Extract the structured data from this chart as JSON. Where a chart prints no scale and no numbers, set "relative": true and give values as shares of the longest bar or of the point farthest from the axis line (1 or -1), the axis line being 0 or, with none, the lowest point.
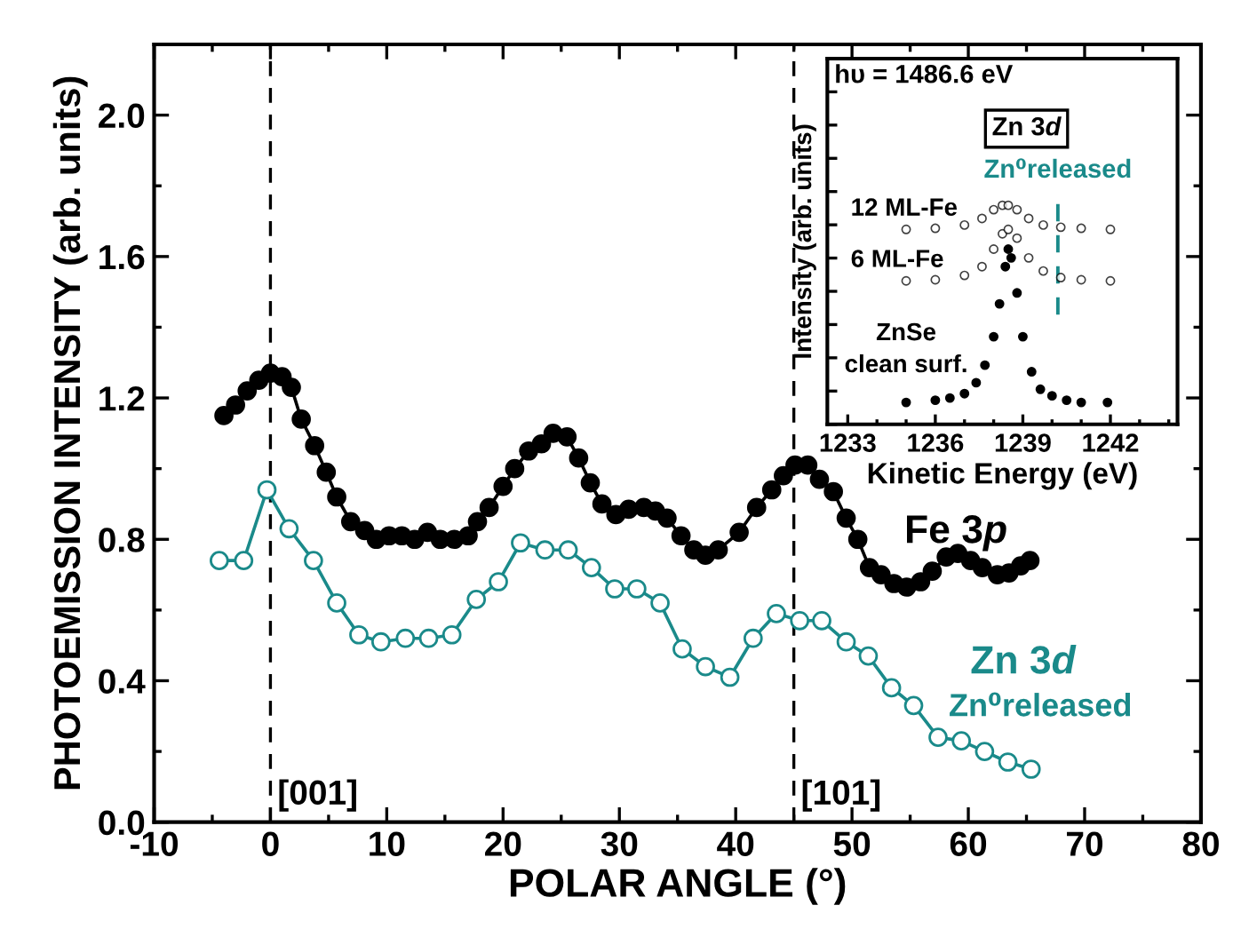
{
  "chart_data": [
    {
      "type": "line",
      "xlabel": "POLAR ANGLE (°)",
      "ylabel": "PHOTOEMISSION INTENSITY (arb. units)",
      "xlim": [
        -10,
        80
      ],
      "ylim": [
        0,
        2.2
      ],
      "xticks": [
        -10,
        0,
        10,
        20,
        30,
        40,
        50,
        60,
        70,
        80
      ],
      "yticks": [
        {
          "value": 0,
          "label": "0.0"
        },
        {
          "value": 0.4,
          "label": "0.4"
        },
        {
          "value": 0.8,
          "label": "0.8"
        },
        {
          "value": 1.2,
          "label": "1.2"
        },
        {
          "value": 1.6,
          "label": "1.6"
        },
        {
          "value": 2.0,
          "label": "2.0"
        }
      ],
      "marker": "circle",
      "grid": false,
      "series": [
        {
          "name": "Fe 3p",
          "color": "#000000",
          "x": [
            -4.0,
            -3.0,
            -2.0,
            -1.0,
            0.0,
            1.0,
            1.8,
            2.65,
            3.8,
            4.8,
            5.7,
            6.9,
            8.1,
            9.1,
            10.2,
            11.3,
            12.4,
            13.5,
            14.6,
            15.8,
            17.0,
            17.8,
            18.8,
            20.0,
            21.0,
            22.2,
            23.3,
            24.3,
            25.5,
            26.5,
            27.5,
            28.5,
            29.7,
            30.8,
            32.1,
            33.1,
            34.1,
            35.3,
            36.4,
            37.4,
            38.5,
            40.3,
            41.8,
            43.1,
            44.1,
            45.1,
            46.2,
            47.2,
            48.4,
            49.5,
            50.5,
            51.5,
            52.5,
            53.6,
            54.7,
            55.9,
            56.9,
            58.1,
            59.1,
            60.2,
            61.2,
            62.5,
            63.5,
            64.5,
            65.3
          ],
          "values": [
            1.15,
            1.18,
            1.22,
            1.25,
            1.27,
            1.26,
            1.23,
            1.14,
            1.065,
            0.99,
            0.92,
            0.85,
            0.825,
            0.8,
            0.81,
            0.81,
            0.8,
            0.82,
            0.8,
            0.8,
            0.81,
            0.85,
            0.89,
            0.95,
            1.0,
            1.05,
            1.07,
            1.1,
            1.09,
            1.03,
            0.96,
            0.9,
            0.87,
            0.885,
            0.89,
            0.88,
            0.86,
            0.81,
            0.77,
            0.755,
            0.77,
            0.82,
            0.89,
            0.94,
            0.98,
            1.01,
            1.01,
            0.97,
            0.935,
            0.86,
            0.8,
            0.72,
            0.7,
            0.675,
            0.665,
            0.68,
            0.71,
            0.75,
            0.76,
            0.74,
            0.72,
            0.7,
            0.705,
            0.725,
            0.74
          ]
        },
        {
          "name": "Zn 3d",
          "color": "#1a8a8a",
          "x": [
            -4.4,
            -2.3,
            -0.3,
            1.6,
            3.7,
            5.7,
            7.6,
            9.5,
            11.6,
            13.6,
            15.6,
            17.7,
            19.6,
            21.5,
            23.6,
            25.6,
            27.6,
            29.6,
            31.5,
            33.5,
            35.4,
            37.4,
            39.5,
            41.5,
            43.5,
            45.5,
            47.4,
            49.5,
            51.4,
            53.4,
            55.3,
            57.4,
            59.4,
            61.4,
            63.4,
            65.4
          ],
          "values": [
            0.74,
            0.74,
            0.94,
            0.83,
            0.74,
            0.62,
            0.53,
            0.51,
            0.52,
            0.52,
            0.53,
            0.63,
            0.68,
            0.79,
            0.77,
            0.77,
            0.72,
            0.66,
            0.66,
            0.62,
            0.49,
            0.44,
            0.41,
            0.52,
            0.59,
            0.57,
            0.57,
            0.51,
            0.47,
            0.38,
            0.33,
            0.24,
            0.23,
            0.2,
            0.17,
            0.15
          ]
        }
      ],
      "ref_lines": [
        {
          "axis": "x",
          "value": 0,
          "color": "#000000",
          "line_style": "dashed"
        },
        {
          "axis": "x",
          "value": 45,
          "color": "#000000",
          "line_style": "dashed"
        }
      ],
      "annotations": [
        "Zn⁰released",
        {
          "text": "[001]",
          "x": 0,
          "y": 0.03
        },
        {
          "text": "[101]",
          "x": 45,
          "y": 0.03
        }
      ]
    },
    {
      "type": "scatter",
      "relative": true,
      "xlabel": "Kinetic Energy (eV)",
      "ylabel": "Intensity (arb. units)",
      "xlim": [
        1232.3,
        1244.3
      ],
      "xticks": [
        1233,
        1236,
        1239,
        1242
      ],
      "marker": "circle",
      "grid": false,
      "legend": "left",
      "series": [
        {
          "name": "12 ML-Fe",
          "color": "#000000",
          "x": [
            1235,
            1236,
            1237,
            1237.6,
            1238,
            1238.3,
            1238.5,
            1238.8,
            1239.2,
            1239.7,
            1240.3,
            1241,
            1242
          ],
          "values": [
            0.89,
            0.895,
            0.91,
            0.94,
            0.98,
            1.0,
            1.0,
            0.98,
            0.94,
            0.91,
            0.9,
            0.895,
            0.89
          ]
        },
        {
          "name": "6 ML-Fe",
          "color": "#000000",
          "x": [
            1235,
            1236,
            1237,
            1237.6,
            1238,
            1238.3,
            1238.5,
            1238.8,
            1239.2,
            1239.7,
            1240.3,
            1241,
            1242
          ],
          "values": [
            0.655,
            0.66,
            0.68,
            0.72,
            0.8,
            0.87,
            0.89,
            0.85,
            0.76,
            0.7,
            0.67,
            0.66,
            0.655
          ]
        },
        {
          "name": "ZnSe\nclean surf.",
          "color": "#000000",
          "x": [
            1235,
            1236,
            1236.5,
            1237,
            1237.4,
            1237.7,
            1238.0,
            1238.2,
            1238.4,
            1238.5,
            1238.6,
            1238.8,
            1239.0,
            1239.3,
            1239.6,
            1240,
            1240.5,
            1241,
            1241.9
          ],
          "values": [
            0.1,
            0.11,
            0.12,
            0.14,
            0.19,
            0.27,
            0.4,
            0.55,
            0.72,
            0.8,
            0.76,
            0.6,
            0.4,
            0.24,
            0.16,
            0.13,
            0.11,
            0.1,
            0.1
          ]
        }
      ],
      "ref_lines": [
        {
          "axis": "x",
          "value": 1240.2,
          "label": "Zn⁰released",
          "color": "#1a8a8a",
          "line_style": "dashed"
        }
      ],
      "annotations": [
        "hυ = 1486.6 eV",
        "Zn 3d"
      ]
    }
  ]
}
